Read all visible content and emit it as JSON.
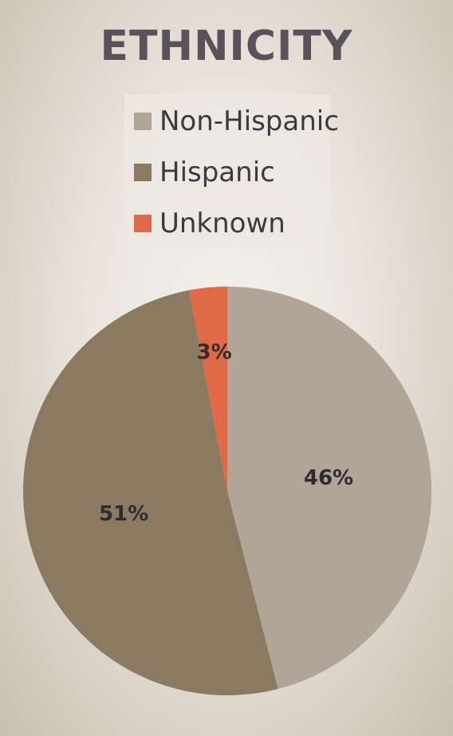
{
  "chart_data": {
    "type": "pie",
    "title": "ETHNICITY",
    "categories": [
      "Non-Hispanic",
      "Hispanic",
      "Unknown"
    ],
    "values": [
      46,
      51,
      3
    ],
    "value_labels": [
      "46%",
      "51%",
      "3%"
    ],
    "colors": [
      "#b0a596",
      "#8b7a62",
      "#e06a45"
    ],
    "legend_position": "top",
    "start_angle": "12 o'clock",
    "direction": "clockwise"
  }
}
